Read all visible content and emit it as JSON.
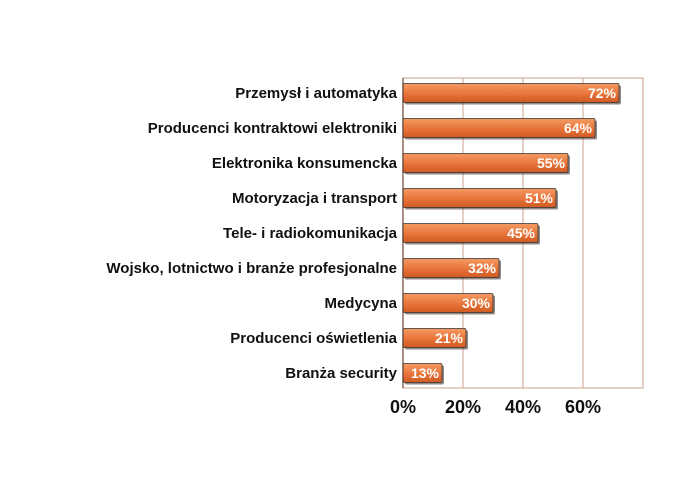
{
  "chart_data": {
    "type": "bar",
    "orientation": "horizontal",
    "categories": [
      "Przemysł i automatyka",
      "Producenci kontraktowi elektroniki",
      "Elektronika konsumencka",
      "Motoryzacja i transport",
      "Tele- i radiokomunikacja",
      "Wojsko, lotnictwo i branże profesjonalne",
      "Medycyna",
      "Producenci oświetlenia",
      "Branża security"
    ],
    "values": [
      72,
      64,
      55,
      51,
      45,
      32,
      30,
      21,
      13
    ],
    "value_labels": [
      "72%",
      "64%",
      "55%",
      "51%",
      "45%",
      "32%",
      "30%",
      "21%",
      "13%"
    ],
    "x_ticks": [
      "0%",
      "20%",
      "40%",
      "60%"
    ],
    "xlim": [
      0,
      80
    ],
    "grid": true,
    "colors": {
      "bar": "#e8743a",
      "bar_edge": "#333333",
      "grid": "#c9a08a"
    }
  }
}
